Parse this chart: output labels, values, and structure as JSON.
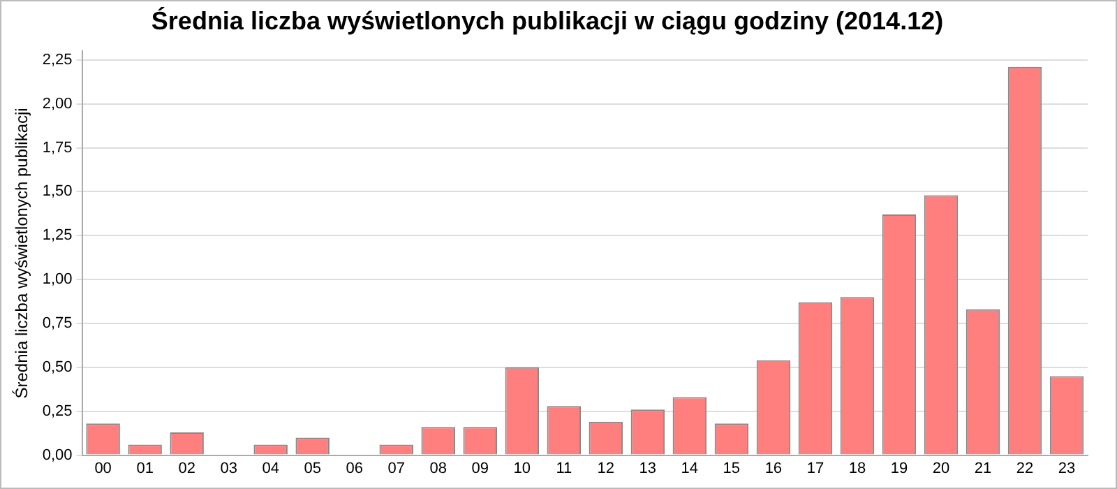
{
  "chart_data": {
    "type": "bar",
    "title": "Średnia liczba wyświetlonych publikacji w ciągu godziny (2014.12)",
    "ylabel": "Średnia liczba wyświetlonych publikacji",
    "categories": [
      "00",
      "01",
      "02",
      "03",
      "04",
      "05",
      "06",
      "07",
      "08",
      "09",
      "10",
      "11",
      "12",
      "13",
      "14",
      "15",
      "16",
      "17",
      "18",
      "19",
      "20",
      "21",
      "22",
      "23"
    ],
    "values": [
      0.18,
      0.06,
      0.13,
      0,
      0.06,
      0.1,
      0,
      0.06,
      0.16,
      0.16,
      0.5,
      0.28,
      0.19,
      0.26,
      0.33,
      0.18,
      0.54,
      0.87,
      0.9,
      1.37,
      1.48,
      0.83,
      2.21,
      0.45
    ],
    "color": "#ff7f7f",
    "ylim": [
      0,
      2.3
    ],
    "yticks": [
      {
        "value": 0,
        "label": "0,00"
      },
      {
        "value": 0.25,
        "label": "0,25"
      },
      {
        "value": 0.5,
        "label": "0,50"
      },
      {
        "value": 0.75,
        "label": "0,75"
      },
      {
        "value": 1,
        "label": "1,00"
      },
      {
        "value": 1.25,
        "label": "1,25"
      },
      {
        "value": 1.5,
        "label": "1,50"
      },
      {
        "value": 1.75,
        "label": "1,75"
      },
      {
        "value": 2,
        "label": "2,00"
      },
      {
        "value": 2.25,
        "label": "2,25"
      }
    ],
    "grid": "y"
  }
}
